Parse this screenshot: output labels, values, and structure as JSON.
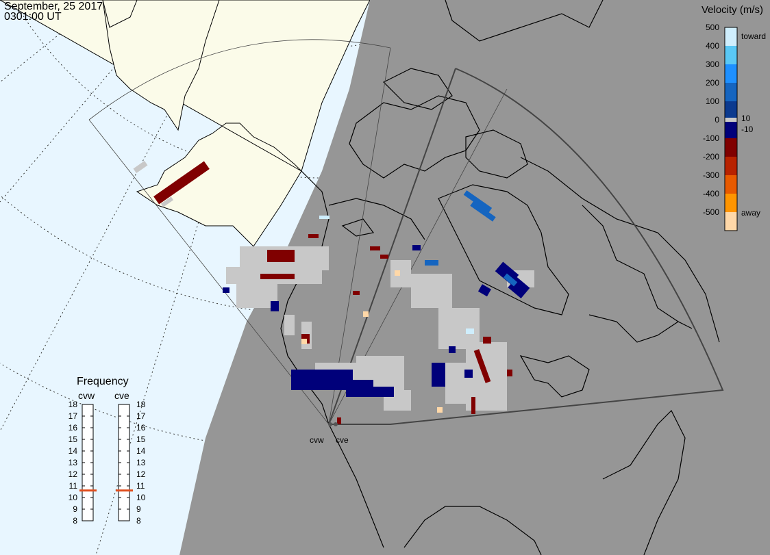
{
  "header": {
    "date": "September, 25 2017",
    "time": "0301:00 UT"
  },
  "velocity_legend": {
    "title": "Velocity (m/s)",
    "ticks": [
      "500",
      "400",
      "300",
      "200",
      "100",
      "0",
      "-100",
      "-200",
      "-300",
      "-400",
      "-500"
    ],
    "toward_label": "toward",
    "away_label": "away",
    "pos_threshold": "10",
    "neg_threshold": "-10",
    "colors": [
      "#cfeefd",
      "#5ac8f5",
      "#1e90ff",
      "#1565c0",
      "#0b3a8f",
      "#00007a",
      "#800000",
      "#b82200",
      "#e85a00",
      "#ff9500",
      "#ffd8a8"
    ]
  },
  "frequency_panel": {
    "title": "Frequency",
    "radars": [
      "cvw",
      "cve"
    ],
    "scale": [
      "18",
      "17",
      "16",
      "15",
      "14",
      "13",
      "12",
      "11",
      "10",
      "9",
      "8"
    ],
    "cvw_value_mhz": 10.6,
    "cve_value_mhz": 10.6,
    "marker_color": "#e05020"
  },
  "sites": {
    "cvw_label": "cvw",
    "cve_label": "cve"
  },
  "colors": {
    "ocean": "#e8f6ff",
    "land": "#fbfbe9",
    "night": "#969696",
    "ground_scatter": "#c8c8c8"
  }
}
